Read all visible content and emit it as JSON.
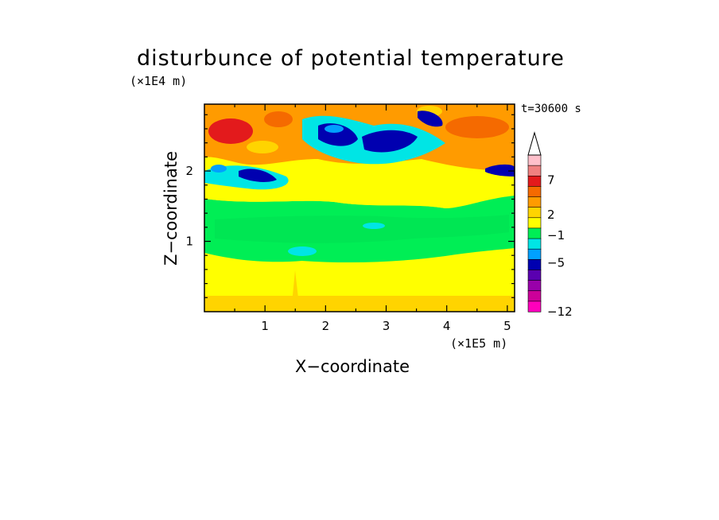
{
  "chart_data": {
    "type": "heatmap",
    "title": "disturbunce of potential temperature",
    "xlabel": "X−coordinate",
    "ylabel": "Z−coordinate",
    "x_multiplier": "(×1E5 m)",
    "y_multiplier": "(×1E4 m)",
    "time_label": "t=30600 s",
    "xlim": [
      0,
      5.12
    ],
    "ylim": [
      0,
      2.95
    ],
    "xticks": [
      "1",
      "2",
      "3",
      "4",
      "5"
    ],
    "yticks": [
      "1",
      "2"
    ],
    "colorbar": {
      "labels": [
        "7",
        "2",
        "−1",
        "−5",
        "−12"
      ],
      "colors": [
        "#ffc0cb",
        "#f08080",
        "#e31a1c",
        "#f56a00",
        "#ff9b00",
        "#ffd400",
        "#ffff00",
        "#00ee55",
        "#00e5e5",
        "#00a0ff",
        "#0000b0",
        "#5a00b0",
        "#9900aa",
        "#cc0099",
        "#ff00bb"
      ],
      "extend": "max"
    },
    "grid": false
  }
}
